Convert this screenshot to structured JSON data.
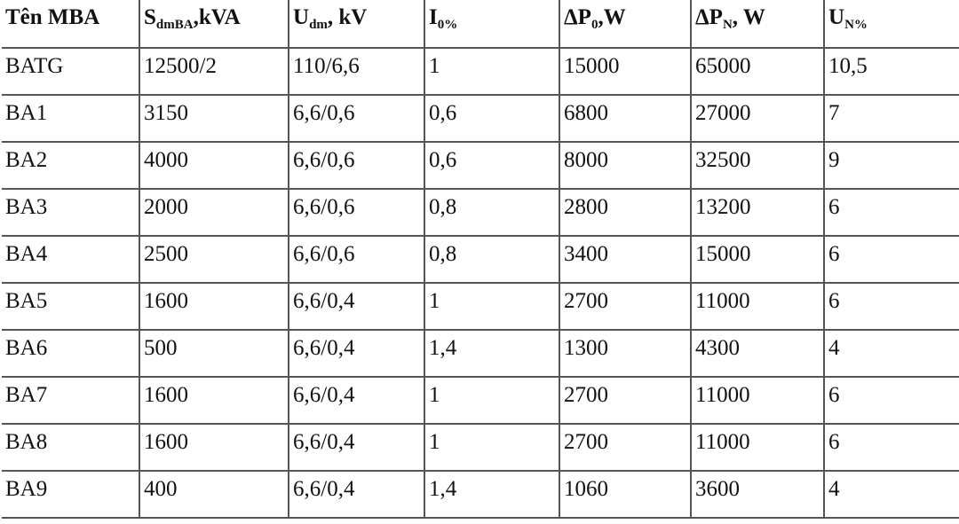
{
  "table": {
    "header": [
      {
        "text": "Tên MBA"
      },
      {
        "text": "S",
        "sub": "dmBA",
        "after": ",kVA"
      },
      {
        "text": "U",
        "sub": "dm",
        "after": ", kV"
      },
      {
        "text": "I",
        "sub": "0%"
      },
      {
        "text": "ΔP",
        "sub": "0",
        "after": ",W"
      },
      {
        "text": "ΔP",
        "sub": "N",
        "after": ", W"
      },
      {
        "text": "U",
        "sub": "N%"
      }
    ],
    "rows": [
      [
        "BATG",
        "12500/2",
        "110/6,6",
        "1",
        "15000",
        "65000",
        "10,5"
      ],
      [
        "BA1",
        "3150",
        "6,6/0,6",
        "0,6",
        "6800",
        "27000",
        "7"
      ],
      [
        "BA2",
        "4000",
        "6,6/0,6",
        "0,6",
        "8000",
        "32500",
        "9"
      ],
      [
        "BA3",
        "2000",
        "6,6/0,6",
        "0,8",
        "2800",
        "13200",
        "6"
      ],
      [
        "BA4",
        "2500",
        "6,6/0,6",
        "0,8",
        "3400",
        "15000",
        "6"
      ],
      [
        "BA5",
        "1600",
        "6,6/0,4",
        "1",
        "2700",
        "11000",
        "6"
      ],
      [
        "BA6",
        "500",
        "6,6/0,4",
        "1,4",
        "1300",
        "4300",
        "4"
      ],
      [
        "BA7",
        "1600",
        "6,6/0,4",
        "1",
        "2700",
        "11000",
        "6"
      ],
      [
        "BA8",
        "1600",
        "6,6/0,4",
        "1",
        "2700",
        "11000",
        "6"
      ],
      [
        "BA9",
        "400",
        "6,6/0,4",
        "1,4",
        "1060",
        "3600",
        "4"
      ]
    ]
  }
}
